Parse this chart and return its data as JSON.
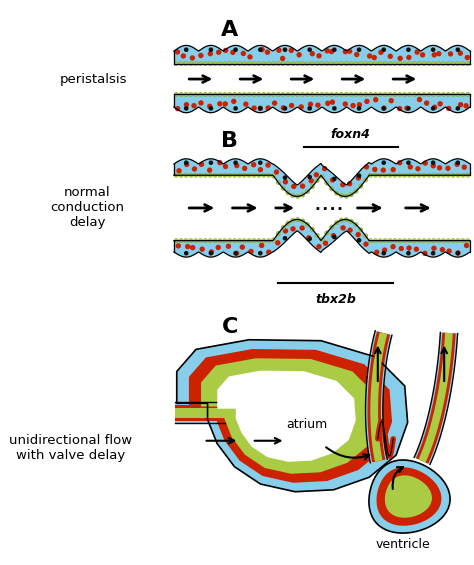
{
  "bg_color": "#ffffff",
  "label_A": "A",
  "label_B": "B",
  "label_C": "C",
  "text_peristalsis": "peristalsis",
  "text_normal": "normal\nconduction\ndelay",
  "text_unidirectional": "unidirectional flow\nwith valve delay",
  "text_foxn4": "foxn4",
  "text_tbx2b": "tbx2b",
  "text_atrium": "atrium",
  "text_ventricle": "ventricle",
  "color_blue": "#87CEEB",
  "color_red": "#CC2200",
  "color_green": "#AACC44",
  "color_black": "#000000"
}
